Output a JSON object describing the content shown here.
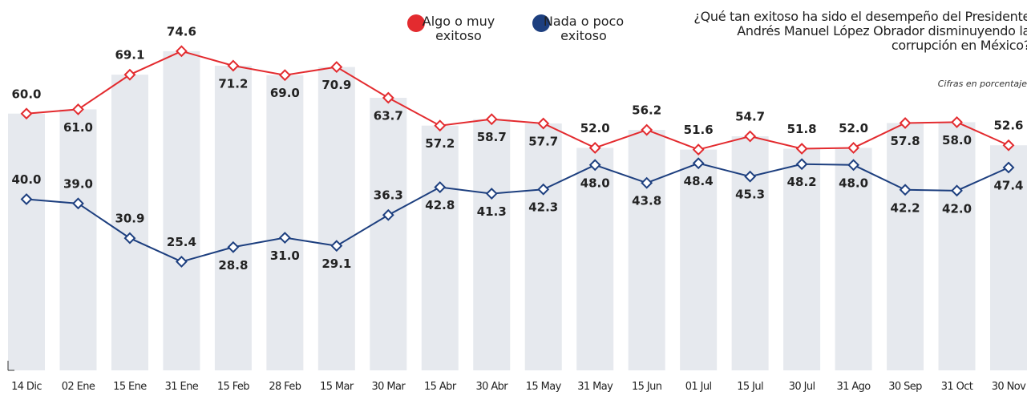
{
  "chart_data": {
    "type": "line",
    "title": "¿Qué tan exitoso ha sido el desempeño del Presidente Andrés Manuel López Obrador disminuyendo la corrupción en México?",
    "subtitle": "Cifras en porcentaje",
    "categories": [
      "14 Dic",
      "02 Ene",
      "15 Ene",
      "31 Ene",
      "15 Feb",
      "28 Feb",
      "15 Mar",
      "30 Mar",
      "15 Abr",
      "30 Abr",
      "15 May",
      "31 May",
      "15 Jun",
      "01 Jul",
      "15 Jul",
      "30 Jul",
      "31 Ago",
      "30 Sep",
      "31 Oct",
      "30 Nov"
    ],
    "series": [
      {
        "name": "Algo o muy exitoso",
        "color": "#e32b2f",
        "values": [
          60,
          61,
          69.1,
          74.6,
          71.2,
          69,
          70.9,
          63.7,
          57.2,
          58.7,
          57.7,
          52,
          56.2,
          51.6,
          54.7,
          51.8,
          52,
          57.8,
          58,
          52.6
        ],
        "value_labels": [
          "60.0",
          "61.0",
          "69.1",
          "74.6",
          "71.2",
          "69.0",
          "70.9",
          "63.7",
          "57.2",
          "58.7",
          "57.7",
          "52.0",
          "56.2",
          "51.6",
          "54.7",
          "51.8",
          "52.0",
          "57.8",
          "58.0",
          "52.6"
        ]
      },
      {
        "name": "Nada o poco exitoso",
        "color": "#1d3f7f",
        "values": [
          40,
          39,
          30.9,
          25.4,
          28.8,
          31,
          29.1,
          36.3,
          42.8,
          41.3,
          42.3,
          48,
          43.8,
          48.4,
          45.3,
          48.2,
          48,
          42.2,
          42,
          47.4
        ],
        "value_labels": [
          "40.0",
          "39.0",
          "30.9",
          "25.4",
          "28.8",
          "31.0",
          "29.1",
          "36.3",
          "42.8",
          "41.3",
          "42.3",
          "48.0",
          "43.8",
          "48.4",
          "45.3",
          "48.2",
          "48.0",
          "42.2",
          "42.0",
          "47.4"
        ]
      }
    ],
    "bar_color": "#e6e9ee",
    "ylim": [
      0,
      80
    ]
  }
}
